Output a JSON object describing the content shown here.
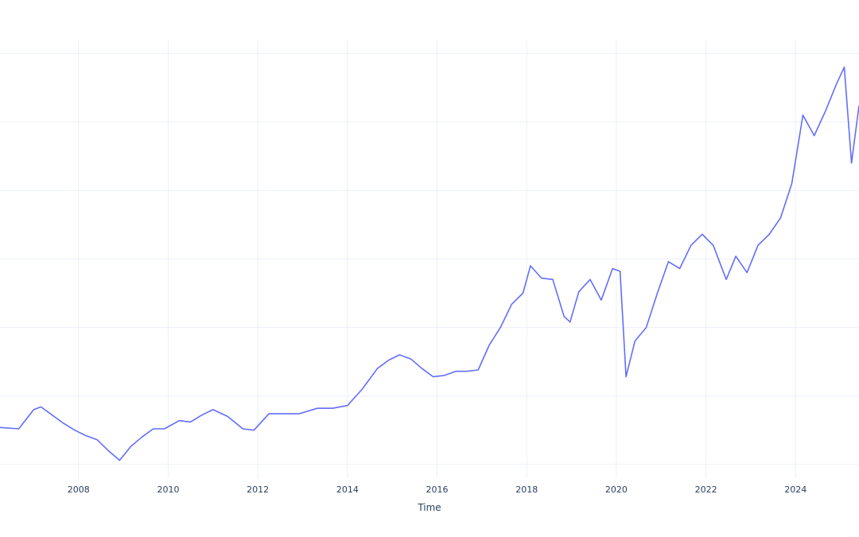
{
  "chart_data": {
    "type": "line",
    "xlabel": "Time",
    "ylabel": "",
    "title": "",
    "xlim": [
      "2006-04-01",
      "2025-06-01"
    ],
    "ylim": [
      -1,
      31
    ],
    "x_ticks": [
      "2008",
      "2010",
      "2012",
      "2014",
      "2016",
      "2018",
      "2020",
      "2022",
      "2024"
    ],
    "y_gridlines": [
      0,
      5,
      10,
      15,
      20,
      25,
      30
    ],
    "grid": true,
    "legend": "none",
    "colors": {
      "line": "#636efa",
      "grid": "#ebf0f8",
      "text": "#2a3f5f"
    },
    "series": [
      {
        "x": [
          "2006-04-01",
          "2006-09-01",
          "2007-01-01",
          "2007-03-01",
          "2007-06-01",
          "2007-09-01",
          "2007-12-01",
          "2008-03-01",
          "2008-06-01",
          "2008-09-01",
          "2008-12-01",
          "2009-03-01",
          "2009-06-01",
          "2009-09-01",
          "2009-12-01",
          "2010-04-01",
          "2010-07-01",
          "2010-10-01",
          "2011-01-01",
          "2011-05-01",
          "2011-09-01",
          "2011-12-01",
          "2012-04-01",
          "2012-08-01",
          "2012-12-01",
          "2013-05-01",
          "2013-09-01",
          "2014-01-01",
          "2014-05-01",
          "2014-09-01",
          "2014-12-01",
          "2015-03-01",
          "2015-06-01",
          "2015-09-01",
          "2015-12-01",
          "2016-03-01",
          "2016-06-01",
          "2016-09-01",
          "2016-12-01",
          "2017-03-01",
          "2017-06-01",
          "2017-09-01",
          "2017-12-01",
          "2018-02-01",
          "2018-05-01",
          "2018-08-01",
          "2018-11-01",
          "2018-12-20",
          "2019-03-01",
          "2019-06-01",
          "2019-09-01",
          "2019-12-01",
          "2020-02-01",
          "2020-03-20",
          "2020-06-01",
          "2020-09-01",
          "2020-12-01",
          "2021-03-01",
          "2021-06-01",
          "2021-09-01",
          "2021-12-01",
          "2022-03-01",
          "2022-06-15",
          "2022-09-01",
          "2022-12-01",
          "2023-03-01",
          "2023-06-01",
          "2023-09-01",
          "2023-12-01",
          "2024-03-01",
          "2024-06-01",
          "2024-09-01",
          "2024-12-01",
          "2025-02-01",
          "2025-04-01",
          "2025-06-01"
        ],
        "y": [
          2.7,
          2.6,
          4.0,
          4.2,
          3.6,
          3.0,
          2.5,
          2.1,
          1.8,
          1.0,
          0.3,
          1.3,
          2.0,
          2.6,
          2.6,
          3.2,
          3.1,
          3.6,
          4.0,
          3.5,
          2.6,
          2.5,
          3.7,
          3.7,
          3.7,
          4.1,
          4.1,
          4.3,
          5.5,
          7.0,
          7.6,
          8.0,
          7.7,
          7.0,
          6.4,
          6.5,
          6.8,
          6.8,
          6.9,
          8.7,
          10.0,
          11.7,
          12.5,
          14.5,
          13.6,
          13.5,
          10.8,
          10.4,
          12.6,
          13.5,
          12.0,
          14.3,
          14.1,
          6.4,
          9.0,
          10.0,
          12.5,
          14.8,
          14.3,
          16.0,
          16.8,
          16.0,
          13.5,
          15.2,
          14.0,
          16.0,
          16.8,
          18.0,
          20.5,
          25.5,
          24.0,
          25.8,
          27.8,
          29.0,
          22.0,
          26.2
        ]
      }
    ]
  }
}
